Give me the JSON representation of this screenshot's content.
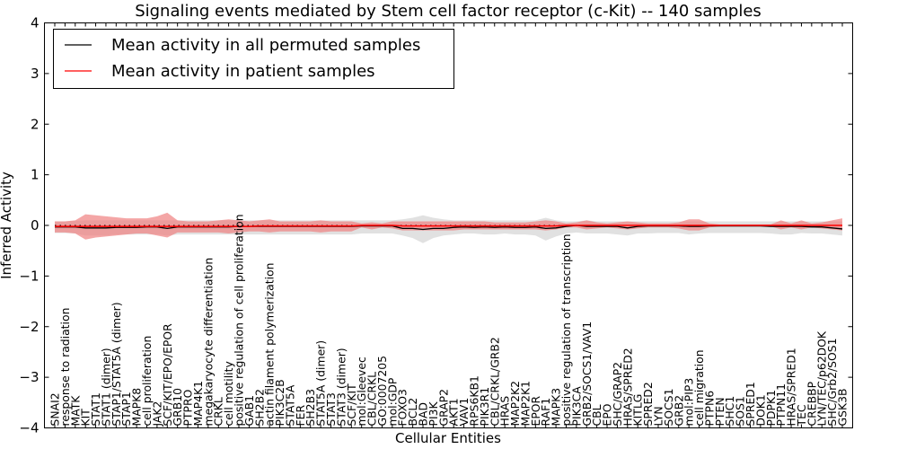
{
  "chart_data": {
    "type": "line",
    "title": "Signaling events mediated by Stem cell factor receptor (c-Kit) -- 140 samples",
    "xlabel": "Cellular Entities",
    "ylabel": "Inferred Activity",
    "ylim": [
      -4,
      4
    ],
    "yticks": [
      4,
      3,
      2,
      1,
      0,
      -1,
      -2,
      -3,
      -4
    ],
    "ytick_labels": [
      "4",
      "3",
      "2",
      "1",
      "0",
      "−1",
      "−2",
      "−3",
      "−4"
    ],
    "grid": false,
    "legend": {
      "placement": "top-left",
      "entries": [
        {
          "label": "Mean activity in all permuted samples",
          "color": "#000000"
        },
        {
          "label": "Mean activity in patient samples",
          "color": "#ff0000"
        }
      ]
    },
    "zero_line": {
      "style": "dotted",
      "color": "#000000",
      "value": 0
    },
    "categories": [
      "SNAI2",
      "response to radiation",
      "MATK",
      "KIT",
      "STAT1",
      "STAT1 (dimer)",
      "STAP1/STAT5A (dimer)",
      "STAP1",
      "MAPK8",
      "cell proliferation",
      "JAK2",
      "SCF/KIT/EPO/EPOR",
      "GRB10",
      "PTPRO",
      "MAP4K1",
      "megakaryocyte differentiation",
      "CRKL",
      "cell motility",
      "positive regulation of cell proliferation",
      "GAB1",
      "SH2B2",
      "actin filament polymerization",
      "PIK3C2B",
      "STAT5A",
      "FER",
      "SH2B3",
      "STAT5A (dimer)",
      "STAT3",
      "STAT3 (dimer)",
      "SCF/KIT",
      "mol:Gleevec",
      "CBL/CRKL",
      "GO:0007205",
      "mol:GDP",
      "FOXO3",
      "BCL2",
      "BAD",
      "PI3K",
      "GRAP2",
      "AKT1",
      "VAV1",
      "RPS6KB1",
      "PIK3R1",
      "CBL/CRKL/GRB2",
      "HRAS",
      "MAP2K2",
      "MAP2K1",
      "EPOR",
      "RAF1",
      "MAPK3",
      "positive regulation of transcription",
      "PIK3CA",
      "GRB2/SOCS1/VAV1",
      "CBL",
      "EPO",
      "SHC/GRAP2",
      "HRAS/SPRED2",
      "KITLG",
      "SPRED2",
      "LYN",
      "SOCS1",
      "GRB2",
      "mol:PIP3",
      "cell migration",
      "PTPN6",
      "PTEN",
      "SHC1",
      "SOS1",
      "SPRED1",
      "DOK1",
      "PDPK1",
      "PTPN11",
      "HRAS/SPRED1",
      "TEC",
      "CREBBP",
      "LYN/TEC/p62DOK",
      "SHC/Grb2/SOS1",
      "GSK3B"
    ],
    "series": [
      {
        "name": "Mean activity in all permuted samples",
        "color": "#000000",
        "values": [
          -0.03,
          -0.03,
          -0.03,
          -0.05,
          -0.05,
          -0.05,
          -0.04,
          -0.04,
          -0.04,
          -0.03,
          -0.03,
          -0.06,
          -0.03,
          -0.03,
          -0.03,
          -0.03,
          -0.03,
          -0.03,
          -0.02,
          -0.02,
          -0.02,
          -0.02,
          -0.02,
          -0.02,
          -0.02,
          -0.02,
          -0.02,
          -0.02,
          -0.02,
          -0.02,
          -0.01,
          -0.01,
          -0.01,
          -0.01,
          -0.06,
          -0.06,
          -0.08,
          -0.06,
          -0.06,
          -0.04,
          -0.03,
          -0.04,
          -0.03,
          -0.04,
          -0.03,
          -0.04,
          -0.04,
          -0.03,
          -0.06,
          -0.05,
          -0.02,
          0.0,
          -0.02,
          -0.02,
          -0.02,
          -0.02,
          -0.05,
          -0.02,
          -0.01,
          -0.01,
          -0.01,
          -0.01,
          -0.02,
          -0.02,
          -0.01,
          -0.01,
          -0.01,
          -0.01,
          -0.01,
          -0.01,
          -0.02,
          -0.02,
          -0.02,
          -0.02,
          -0.03,
          -0.03,
          -0.05,
          -0.07
        ],
        "band": {
          "color": "#d9d9d9",
          "upper": [
            0.08,
            0.08,
            0.09,
            0.1,
            0.1,
            0.1,
            0.1,
            0.1,
            0.1,
            0.1,
            0.1,
            0.1,
            0.1,
            0.1,
            0.1,
            0.1,
            0.1,
            0.1,
            0.1,
            0.1,
            0.1,
            0.1,
            0.1,
            0.1,
            0.1,
            0.1,
            0.1,
            0.1,
            0.1,
            0.1,
            0.1,
            0.1,
            0.1,
            0.1,
            0.12,
            0.15,
            0.2,
            0.15,
            0.12,
            0.1,
            0.1,
            0.1,
            0.1,
            0.1,
            0.1,
            0.1,
            0.1,
            0.1,
            0.15,
            0.1,
            0.08,
            0.08,
            0.1,
            0.08,
            0.08,
            0.08,
            0.08,
            0.08,
            0.08,
            0.08,
            0.08,
            0.08,
            0.08,
            0.08,
            0.08,
            0.08,
            0.08,
            0.08,
            0.08,
            0.08,
            0.08,
            0.08,
            0.08,
            0.08,
            0.08,
            0.08,
            0.08,
            0.08
          ],
          "lower": [
            -0.15,
            -0.15,
            -0.16,
            -0.2,
            -0.2,
            -0.2,
            -0.18,
            -0.18,
            -0.18,
            -0.18,
            -0.18,
            -0.2,
            -0.18,
            -0.18,
            -0.18,
            -0.18,
            -0.18,
            -0.18,
            -0.18,
            -0.18,
            -0.18,
            -0.18,
            -0.18,
            -0.18,
            -0.18,
            -0.18,
            -0.18,
            -0.18,
            -0.18,
            -0.18,
            -0.16,
            -0.16,
            -0.16,
            -0.16,
            -0.2,
            -0.25,
            -0.35,
            -0.25,
            -0.2,
            -0.18,
            -0.16,
            -0.16,
            -0.18,
            -0.18,
            -0.16,
            -0.18,
            -0.18,
            -0.2,
            -0.3,
            -0.22,
            -0.16,
            -0.14,
            -0.16,
            -0.16,
            -0.16,
            -0.18,
            -0.2,
            -0.16,
            -0.16,
            -0.15,
            -0.15,
            -0.15,
            -0.18,
            -0.16,
            -0.15,
            -0.15,
            -0.15,
            -0.15,
            -0.15,
            -0.15,
            -0.16,
            -0.18,
            -0.18,
            -0.15,
            -0.16,
            -0.16,
            -0.18,
            -0.2
          ]
        }
      },
      {
        "name": "Mean activity in patient samples",
        "color": "#ff0000",
        "values": [
          -0.02,
          -0.02,
          -0.02,
          -0.02,
          -0.02,
          -0.02,
          -0.02,
          -0.02,
          -0.02,
          -0.02,
          -0.02,
          -0.02,
          -0.02,
          -0.02,
          -0.02,
          -0.02,
          -0.02,
          -0.02,
          -0.02,
          -0.02,
          -0.01,
          -0.01,
          -0.01,
          -0.01,
          -0.01,
          -0.01,
          -0.01,
          -0.01,
          -0.01,
          -0.01,
          0.0,
          0.0,
          0.0,
          0.0,
          -0.01,
          -0.01,
          -0.01,
          -0.01,
          -0.01,
          -0.01,
          -0.01,
          -0.01,
          -0.01,
          -0.01,
          -0.01,
          -0.01,
          -0.01,
          -0.01,
          -0.01,
          -0.01,
          0.0,
          0.0,
          0.0,
          0.0,
          0.0,
          0.0,
          0.0,
          0.0,
          0.0,
          0.0,
          0.0,
          0.0,
          0.0,
          0.0,
          0.0,
          0.0,
          0.0,
          0.0,
          0.0,
          0.0,
          0.0,
          0.0,
          0.0,
          0.0,
          0.0,
          0.0,
          0.0,
          0.0
        ],
        "band": {
          "color": "#f08080",
          "upper": [
            0.08,
            0.08,
            0.1,
            0.22,
            0.2,
            0.18,
            0.16,
            0.14,
            0.14,
            0.14,
            0.18,
            0.25,
            0.1,
            0.08,
            0.08,
            0.08,
            0.1,
            0.12,
            0.1,
            0.08,
            0.1,
            0.12,
            0.08,
            0.08,
            0.08,
            0.08,
            0.1,
            0.08,
            0.08,
            0.08,
            0.04,
            0.06,
            0.04,
            0.08,
            0.08,
            0.08,
            0.08,
            0.08,
            0.08,
            0.08,
            0.08,
            0.08,
            0.08,
            0.06,
            0.06,
            0.06,
            0.06,
            0.08,
            0.1,
            0.08,
            0.04,
            0.06,
            0.1,
            0.06,
            0.04,
            0.06,
            0.08,
            0.06,
            0.04,
            0.04,
            0.04,
            0.06,
            0.12,
            0.12,
            0.04,
            0.02,
            0.02,
            0.02,
            0.02,
            0.02,
            0.02,
            0.1,
            0.04,
            0.1,
            0.04,
            0.06,
            0.1,
            0.14
          ],
          "lower": [
            -0.14,
            -0.14,
            -0.16,
            -0.28,
            -0.24,
            -0.22,
            -0.2,
            -0.18,
            -0.16,
            -0.16,
            -0.2,
            -0.24,
            -0.14,
            -0.14,
            -0.14,
            -0.14,
            -0.14,
            -0.16,
            -0.14,
            -0.12,
            -0.12,
            -0.14,
            -0.12,
            -0.12,
            -0.12,
            -0.12,
            -0.14,
            -0.12,
            -0.12,
            -0.12,
            -0.04,
            -0.08,
            -0.04,
            -0.06,
            -0.1,
            -0.1,
            -0.1,
            -0.1,
            -0.1,
            -0.1,
            -0.08,
            -0.08,
            -0.08,
            -0.08,
            -0.08,
            -0.08,
            -0.08,
            -0.08,
            -0.1,
            -0.08,
            -0.04,
            -0.04,
            -0.08,
            -0.06,
            -0.04,
            -0.06,
            -0.08,
            -0.06,
            -0.04,
            -0.04,
            -0.04,
            -0.06,
            -0.1,
            -0.1,
            -0.04,
            -0.02,
            -0.02,
            -0.02,
            -0.02,
            -0.02,
            -0.02,
            -0.08,
            -0.04,
            -0.08,
            -0.04,
            -0.06,
            -0.08,
            -0.1
          ]
        }
      }
    ]
  }
}
